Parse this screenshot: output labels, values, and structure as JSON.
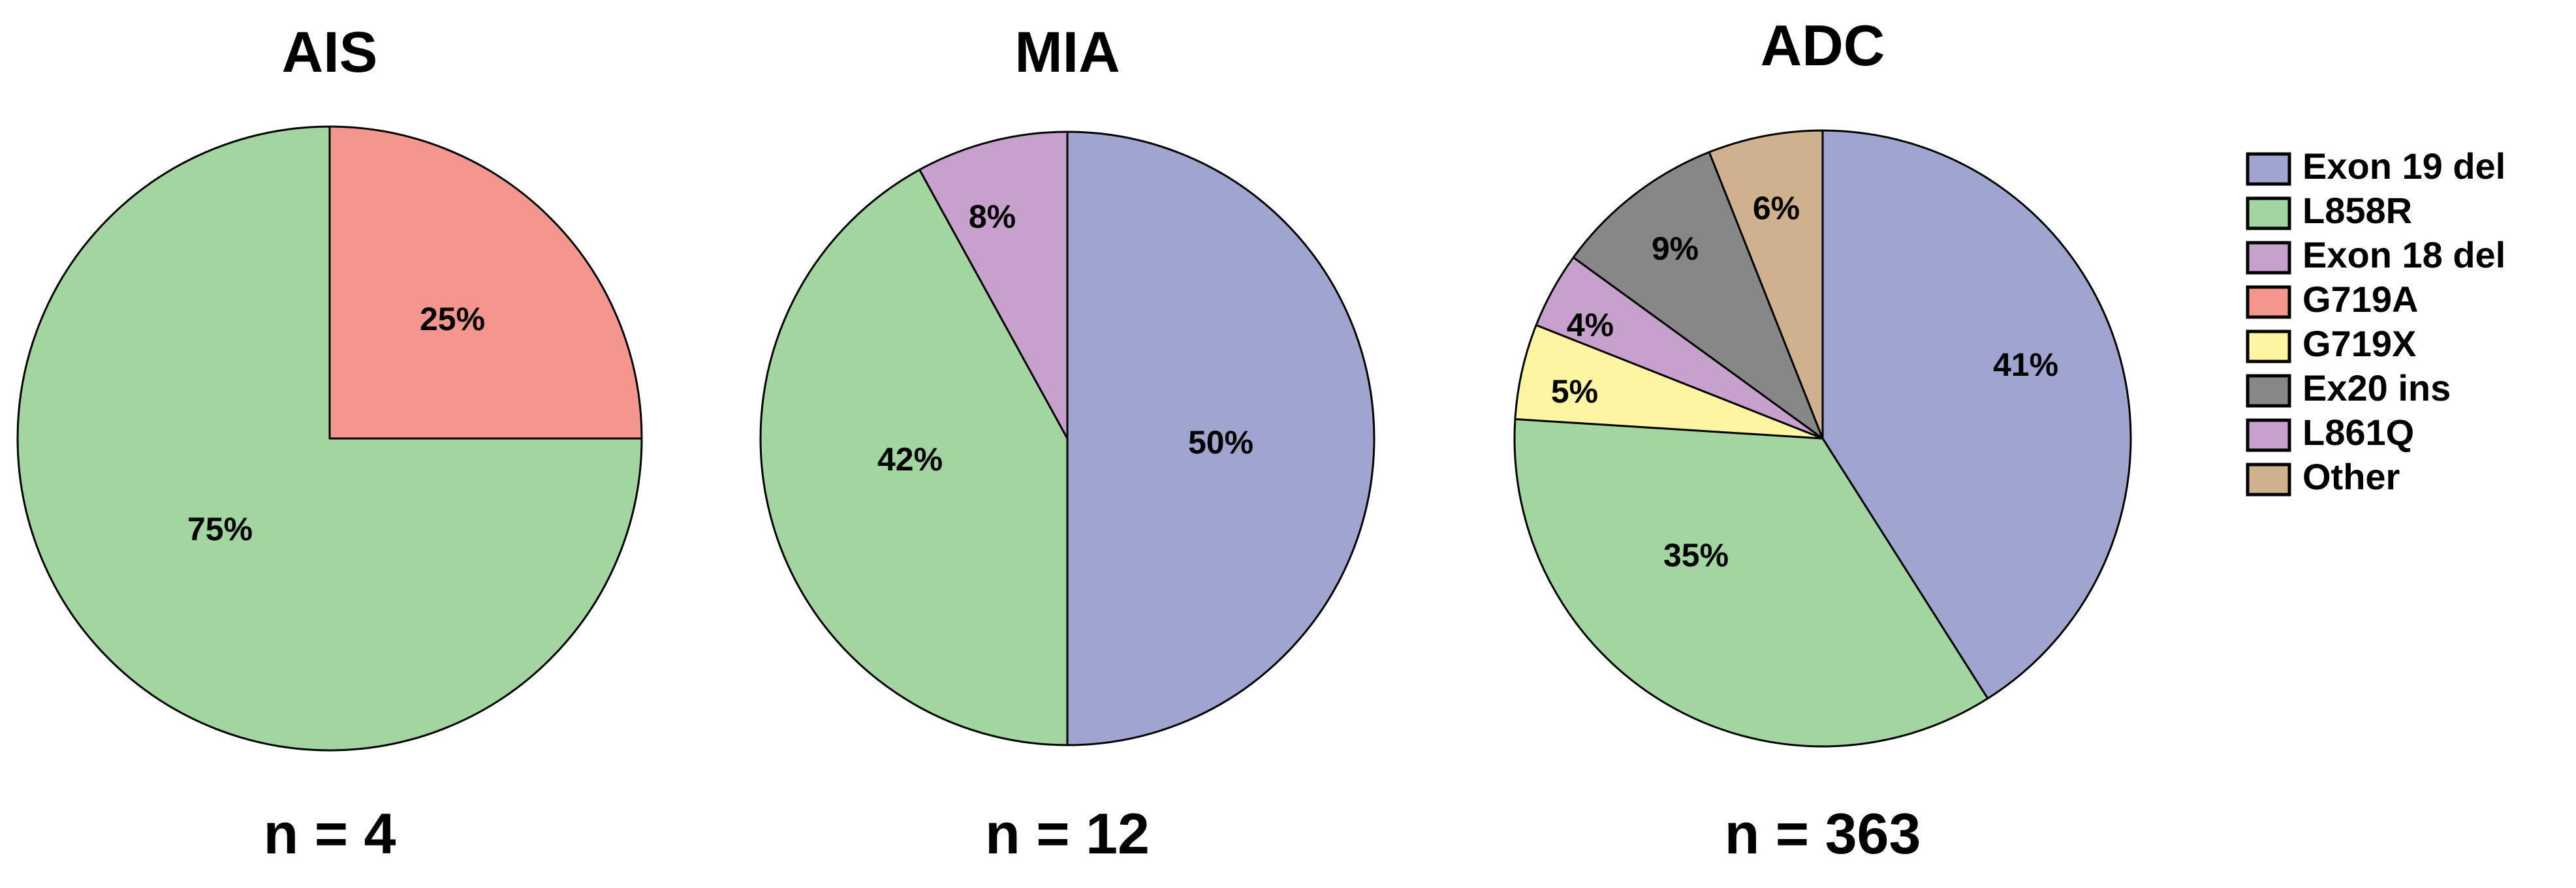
{
  "colors": {
    "Exon 19 del": "#9fa5cf",
    "L858R": "#a2d59f",
    "Exon 18 del": "#c8a0cd",
    "G719A": "#f5968e",
    "G719X": "#fdf5a2",
    "Ex20 ins": "#878787",
    "L861Q": "#c8a0cd",
    "Other": "#d0b18e"
  },
  "legend": {
    "placement": "right",
    "entries": [
      "Exon 19 del",
      "L858R",
      "Exon 18 del",
      "G719A",
      "G719X",
      "Ex20 ins",
      "L861Q",
      "Other"
    ]
  },
  "chart_data": [
    {
      "type": "pie",
      "title": "AIS",
      "n_label": "n = 4",
      "slices": [
        {
          "category": "G719A",
          "value": 25,
          "label": "25%"
        },
        {
          "category": "L858R",
          "value": 75,
          "label": "75%"
        }
      ]
    },
    {
      "type": "pie",
      "title": "MIA",
      "n_label": "n = 12",
      "slices": [
        {
          "category": "Exon 19 del",
          "value": 50,
          "label": "50%"
        },
        {
          "category": "L858R",
          "value": 42,
          "label": "42%"
        },
        {
          "category": "Exon 18 del",
          "value": 8,
          "label": "8%"
        }
      ]
    },
    {
      "type": "pie",
      "title": "ADC",
      "n_label": "n = 363",
      "slices": [
        {
          "category": "Exon 19 del",
          "value": 41,
          "label": "41%"
        },
        {
          "category": "L858R",
          "value": 35,
          "label": "35%"
        },
        {
          "category": "G719X",
          "value": 5,
          "label": "5%"
        },
        {
          "category": "L861Q",
          "value": 4,
          "label": "4%"
        },
        {
          "category": "Ex20 ins",
          "value": 9,
          "label": "9%"
        },
        {
          "category": "Other",
          "value": 6,
          "label": "6%"
        }
      ]
    }
  ]
}
